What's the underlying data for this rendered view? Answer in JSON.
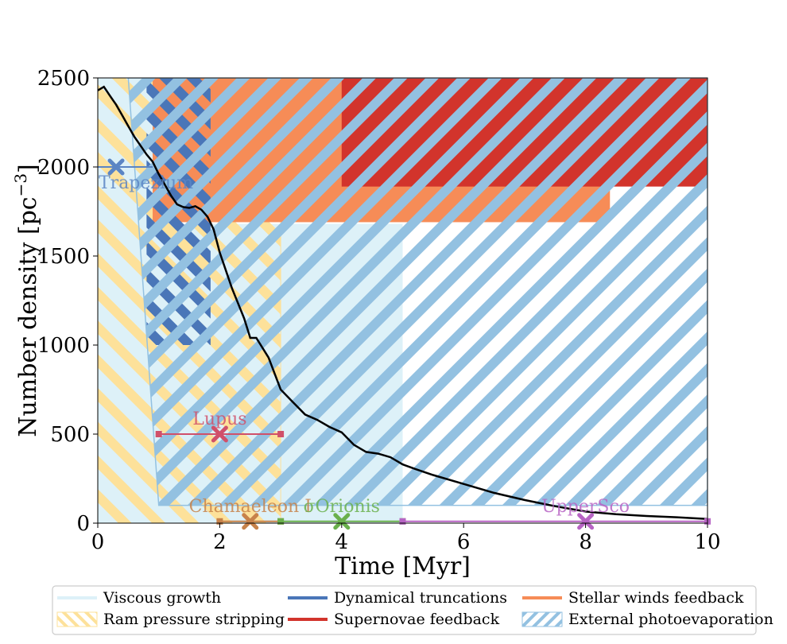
{
  "chart_data": {
    "type": "line",
    "xlabel": "Time [Myr]",
    "ylabel": "Number density [pc^-3]",
    "xlim": [
      0,
      10
    ],
    "ylim": [
      0,
      2500
    ],
    "x_ticks": [
      "0",
      "2",
      "4",
      "6",
      "8",
      "10"
    ],
    "y_ticks": [
      "0",
      "500",
      "1000",
      "1500",
      "2000",
      "2500"
    ],
    "grid": false,
    "legend_position": "bottom, outside the plot area",
    "colors": {
      "viscous_growth": "#ddf1f8",
      "ram_pressure": "#fde19a",
      "dynamical_truncations": "#4a76b8",
      "supernovae": "#d2342c",
      "stellar_winds": "#f68c57",
      "external_photoevaporation": "#93c1e1",
      "curve": "#000000"
    },
    "regions": [
      {
        "name": "Viscous growth",
        "x": [
          0,
          5
        ],
        "y_top": [
          2500,
          1680
        ],
        "style": "filled"
      },
      {
        "name": "Ram pressure stripping",
        "x": [
          0,
          3
        ],
        "y": [
          0,
          2500
        ],
        "style": "hatched"
      },
      {
        "name": "Dynamical truncations",
        "x": [
          0.8,
          1.85
        ],
        "y": [
          1000,
          2500
        ],
        "style": "hatched"
      },
      {
        "name": "Stellar winds feedback",
        "x": [
          0.9,
          8.4
        ],
        "y": [
          1690,
          2500
        ],
        "style": "filled"
      },
      {
        "name": "Supernovae feedback",
        "x": [
          4,
          10
        ],
        "y": [
          1890,
          2500
        ],
        "style": "filled"
      },
      {
        "name": "External photoevaporation",
        "x": [
          0.5,
          10
        ],
        "y_bottom": [
          100,
          2500
        ],
        "style": "hatched"
      }
    ],
    "series": [
      {
        "name": "",
        "x": [
          0,
          0.1,
          0.2,
          0.3,
          0.4,
          0.5,
          0.6,
          0.7,
          0.8,
          0.9,
          1.0,
          1.1,
          1.2,
          1.3,
          1.4,
          1.5,
          1.6,
          1.7,
          1.8,
          1.9,
          2.0,
          2.2,
          2.4,
          2.5,
          2.6,
          2.8,
          3.0,
          3.2,
          3.4,
          3.6,
          3.8,
          4.0,
          4.2,
          4.4,
          4.6,
          4.8,
          5.0,
          5.2,
          5.5,
          6.0,
          6.5,
          7.0,
          7.5,
          8.0,
          8.5,
          9.0,
          9.5,
          10.0
        ],
        "y": [
          2430,
          2450,
          2400,
          2350,
          2290,
          2230,
          2170,
          2120,
          2070,
          2030,
          1960,
          1900,
          1840,
          1790,
          1775,
          1770,
          1780,
          1760,
          1720,
          1650,
          1520,
          1320,
          1150,
          1040,
          1040,
          930,
          750,
          680,
          610,
          580,
          540,
          510,
          440,
          400,
          390,
          370,
          330,
          305,
          270,
          220,
          170,
          130,
          95,
          65,
          50,
          40,
          33,
          23
        ]
      }
    ],
    "clusters": [
      {
        "name": "Trapezium",
        "x": 0.3,
        "y": 2000,
        "xerr": [
          0,
          0.9
        ],
        "color": "#5b85c4"
      },
      {
        "name": "Lupus",
        "x": 2,
        "y": 500,
        "xerr": [
          1,
          3
        ],
        "color": "#d0506a"
      },
      {
        "name": "Chamaeleon I",
        "x": 2.5,
        "y": 10,
        "xerr": [
          2,
          3
        ],
        "color": "#c7824a"
      },
      {
        "name": "σOrionis",
        "x": 4,
        "y": 10,
        "xerr": [
          3,
          5
        ],
        "color": "#6ab04c"
      },
      {
        "name": "UpperSco",
        "x": 8,
        "y": 10,
        "xerr": [
          5,
          10
        ],
        "color": "#b764c4"
      }
    ],
    "legend": [
      {
        "label": "Viscous growth",
        "kind": "line",
        "key": "viscous_growth"
      },
      {
        "label": "Dynamical truncations",
        "kind": "line",
        "key": "dynamical_truncations"
      },
      {
        "label": "Stellar winds feedback",
        "kind": "line",
        "key": "stellar_winds"
      },
      {
        "label": "Ram pressure stripping",
        "kind": "hatch",
        "key": "ram_pressure"
      },
      {
        "label": "Supernovae feedback",
        "kind": "line",
        "key": "supernovae"
      },
      {
        "label": "External photoevaporation",
        "kind": "hatch",
        "key": "external_photoevaporation"
      }
    ]
  }
}
